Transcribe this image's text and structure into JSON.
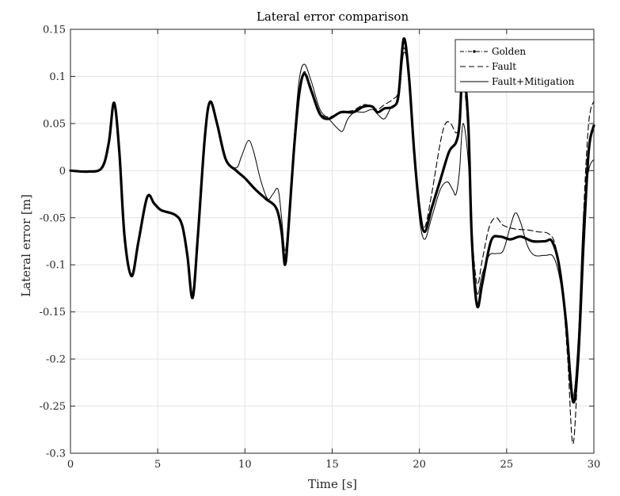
{
  "chart_data": {
    "type": "line",
    "title": "Lateral error comparison",
    "xlabel": "Time [s]",
    "ylabel": "Lateral error [m]",
    "xlim": [
      0,
      30
    ],
    "ylim": [
      -0.3,
      0.15
    ],
    "xticks": [
      0,
      5,
      10,
      15,
      20,
      25,
      30
    ],
    "xtick_labels": [
      "0",
      "5",
      "10",
      "15",
      "20",
      "25",
      "30"
    ],
    "yticks": [
      0.15,
      0.1,
      0.05,
      0,
      -0.05,
      -0.1,
      -0.15,
      -0.2,
      -0.25,
      -0.3
    ],
    "ytick_labels": [
      "0.15",
      "0.1",
      "0.05",
      "0",
      "-0.05",
      "-0.1",
      "-0.15",
      "-0.2",
      "-0.25",
      "-0.3"
    ],
    "grid": true,
    "legend_position": "top-right",
    "series": [
      {
        "name": "Golden",
        "style": "dash-dot",
        "color": "#000000",
        "points": [
          [
            0,
            0
          ],
          [
            1.0,
            -0.001
          ],
          [
            1.8,
            0.003
          ],
          [
            2.2,
            0.03
          ],
          [
            2.5,
            0.072
          ],
          [
            2.8,
            0.02
          ],
          [
            3.1,
            -0.07
          ],
          [
            3.5,
            -0.112
          ],
          [
            3.9,
            -0.075
          ],
          [
            4.4,
            -0.028
          ],
          [
            4.8,
            -0.035
          ],
          [
            5.2,
            -0.042
          ],
          [
            6.0,
            -0.047
          ],
          [
            6.4,
            -0.058
          ],
          [
            6.7,
            -0.09
          ],
          [
            7.0,
            -0.135
          ],
          [
            7.3,
            -0.07
          ],
          [
            7.7,
            0.035
          ],
          [
            8.0,
            0.073
          ],
          [
            8.4,
            0.05
          ],
          [
            8.9,
            0.012
          ],
          [
            9.5,
            0.0
          ],
          [
            10.0,
            -0.008
          ],
          [
            10.6,
            -0.02
          ],
          [
            11.2,
            -0.03
          ],
          [
            11.8,
            -0.04
          ],
          [
            12.1,
            -0.065
          ],
          [
            12.3,
            -0.1
          ],
          [
            12.5,
            -0.06
          ],
          [
            12.8,
            0.02
          ],
          [
            13.1,
            0.08
          ],
          [
            13.4,
            0.103
          ],
          [
            13.8,
            0.085
          ],
          [
            14.3,
            0.06
          ],
          [
            14.8,
            0.055
          ],
          [
            15.5,
            0.062
          ],
          [
            16.2,
            0.062
          ],
          [
            16.8,
            0.068
          ],
          [
            17.3,
            0.068
          ],
          [
            17.6,
            0.062
          ],
          [
            18.0,
            0.066
          ],
          [
            18.5,
            0.068
          ],
          [
            18.8,
            0.08
          ],
          [
            19.1,
            0.14
          ],
          [
            19.4,
            0.1
          ],
          [
            19.7,
            0.02
          ],
          [
            20.0,
            -0.04
          ],
          [
            20.3,
            -0.065
          ],
          [
            20.7,
            -0.04
          ],
          [
            21.2,
            -0.01
          ],
          [
            21.7,
            0.02
          ],
          [
            22.1,
            0.03
          ],
          [
            22.3,
            0.05
          ],
          [
            22.5,
            0.11
          ],
          [
            22.8,
            0.05
          ],
          [
            23.0,
            -0.07
          ],
          [
            23.3,
            -0.143
          ],
          [
            23.6,
            -0.12
          ],
          [
            24.1,
            -0.075
          ],
          [
            24.6,
            -0.07
          ],
          [
            25.2,
            -0.073
          ],
          [
            25.8,
            -0.07
          ],
          [
            26.5,
            -0.075
          ],
          [
            27.2,
            -0.075
          ],
          [
            27.6,
            -0.075
          ],
          [
            28.0,
            -0.1
          ],
          [
            28.4,
            -0.16
          ],
          [
            28.8,
            -0.245
          ],
          [
            29.1,
            -0.2
          ],
          [
            29.4,
            -0.08
          ],
          [
            29.7,
            0.02
          ],
          [
            30.0,
            0.048
          ]
        ]
      },
      {
        "name": "Fault",
        "style": "dashed",
        "color": "#000000",
        "points": [
          [
            0,
            0
          ],
          [
            1.0,
            -0.001
          ],
          [
            1.8,
            0.003
          ],
          [
            2.2,
            0.03
          ],
          [
            2.5,
            0.072
          ],
          [
            2.8,
            0.02
          ],
          [
            3.1,
            -0.07
          ],
          [
            3.5,
            -0.112
          ],
          [
            3.9,
            -0.075
          ],
          [
            4.4,
            -0.028
          ],
          [
            4.8,
            -0.035
          ],
          [
            5.2,
            -0.042
          ],
          [
            6.0,
            -0.047
          ],
          [
            6.4,
            -0.058
          ],
          [
            6.7,
            -0.09
          ],
          [
            7.0,
            -0.135
          ],
          [
            7.3,
            -0.07
          ],
          [
            7.7,
            0.035
          ],
          [
            8.0,
            0.073
          ],
          [
            8.4,
            0.05
          ],
          [
            8.9,
            0.012
          ],
          [
            9.5,
            0.0
          ],
          [
            10.0,
            -0.008
          ],
          [
            10.6,
            -0.02
          ],
          [
            11.2,
            -0.03
          ],
          [
            11.8,
            -0.04
          ],
          [
            12.1,
            -0.065
          ],
          [
            12.3,
            -0.09
          ],
          [
            12.5,
            -0.06
          ],
          [
            12.8,
            0.02
          ],
          [
            13.1,
            0.08
          ],
          [
            13.4,
            0.105
          ],
          [
            13.8,
            0.088
          ],
          [
            14.3,
            0.062
          ],
          [
            14.8,
            0.057
          ],
          [
            15.5,
            0.062
          ],
          [
            16.2,
            0.064
          ],
          [
            16.8,
            0.07
          ],
          [
            17.3,
            0.068
          ],
          [
            17.6,
            0.065
          ],
          [
            18.0,
            0.07
          ],
          [
            18.5,
            0.076
          ],
          [
            18.8,
            0.085
          ],
          [
            19.1,
            0.13
          ],
          [
            19.4,
            0.1
          ],
          [
            19.7,
            0.02
          ],
          [
            20.0,
            -0.04
          ],
          [
            20.3,
            -0.06
          ],
          [
            20.7,
            -0.025
          ],
          [
            21.2,
            0.03
          ],
          [
            21.5,
            0.05
          ],
          [
            21.8,
            0.05
          ],
          [
            22.1,
            0.04
          ],
          [
            22.3,
            0.05
          ],
          [
            22.5,
            0.095
          ],
          [
            22.8,
            0.04
          ],
          [
            23.0,
            -0.06
          ],
          [
            23.3,
            -0.12
          ],
          [
            23.6,
            -0.095
          ],
          [
            24.0,
            -0.06
          ],
          [
            24.4,
            -0.05
          ],
          [
            24.8,
            -0.058
          ],
          [
            25.5,
            -0.062
          ],
          [
            26.2,
            -0.063
          ],
          [
            26.8,
            -0.065
          ],
          [
            27.4,
            -0.067
          ],
          [
            27.8,
            -0.08
          ],
          [
            28.2,
            -0.13
          ],
          [
            28.5,
            -0.2
          ],
          [
            28.8,
            -0.29
          ],
          [
            29.1,
            -0.2
          ],
          [
            29.4,
            -0.05
          ],
          [
            29.7,
            0.05
          ],
          [
            30.0,
            0.074
          ]
        ]
      },
      {
        "name": "Fault+Mitigation",
        "style": "solid-thin",
        "color": "#000000",
        "points": [
          [
            0,
            0
          ],
          [
            1.0,
            -0.001
          ],
          [
            1.8,
            0.003
          ],
          [
            2.2,
            0.03
          ],
          [
            2.5,
            0.072
          ],
          [
            2.8,
            0.02
          ],
          [
            3.1,
            -0.07
          ],
          [
            3.5,
            -0.112
          ],
          [
            3.9,
            -0.075
          ],
          [
            4.4,
            -0.028
          ],
          [
            4.8,
            -0.035
          ],
          [
            5.2,
            -0.042
          ],
          [
            6.0,
            -0.047
          ],
          [
            6.4,
            -0.058
          ],
          [
            6.7,
            -0.09
          ],
          [
            7.0,
            -0.135
          ],
          [
            7.3,
            -0.07
          ],
          [
            7.7,
            0.035
          ],
          [
            8.0,
            0.073
          ],
          [
            8.4,
            0.05
          ],
          [
            8.9,
            0.012
          ],
          [
            9.5,
            0.003
          ],
          [
            9.8,
            0.015
          ],
          [
            10.2,
            0.032
          ],
          [
            10.5,
            0.02
          ],
          [
            10.9,
            -0.01
          ],
          [
            11.3,
            -0.03
          ],
          [
            11.6,
            -0.025
          ],
          [
            11.9,
            -0.02
          ],
          [
            12.1,
            -0.05
          ],
          [
            12.3,
            -0.085
          ],
          [
            12.5,
            -0.05
          ],
          [
            12.8,
            0.03
          ],
          [
            13.1,
            0.095
          ],
          [
            13.4,
            0.113
          ],
          [
            13.8,
            0.095
          ],
          [
            14.3,
            0.065
          ],
          [
            14.8,
            0.055
          ],
          [
            15.3,
            0.045
          ],
          [
            15.6,
            0.042
          ],
          [
            15.9,
            0.055
          ],
          [
            16.3,
            0.062
          ],
          [
            16.8,
            0.062
          ],
          [
            17.3,
            0.065
          ],
          [
            17.6,
            0.06
          ],
          [
            18.0,
            0.055
          ],
          [
            18.4,
            0.068
          ],
          [
            18.8,
            0.075
          ],
          [
            19.1,
            0.125
          ],
          [
            19.4,
            0.1
          ],
          [
            19.7,
            0.02
          ],
          [
            20.0,
            -0.05
          ],
          [
            20.3,
            -0.073
          ],
          [
            20.7,
            -0.05
          ],
          [
            21.2,
            -0.02
          ],
          [
            21.6,
            -0.012
          ],
          [
            21.9,
            -0.02
          ],
          [
            22.1,
            -0.025
          ],
          [
            22.3,
            0.0
          ],
          [
            22.5,
            0.05
          ],
          [
            22.8,
            0.01
          ],
          [
            23.0,
            -0.07
          ],
          [
            23.3,
            -0.13
          ],
          [
            23.6,
            -0.11
          ],
          [
            24.0,
            -0.09
          ],
          [
            24.4,
            -0.088
          ],
          [
            24.8,
            -0.085
          ],
          [
            25.2,
            -0.06
          ],
          [
            25.5,
            -0.045
          ],
          [
            25.8,
            -0.055
          ],
          [
            26.2,
            -0.08
          ],
          [
            26.6,
            -0.09
          ],
          [
            27.2,
            -0.09
          ],
          [
            27.7,
            -0.092
          ],
          [
            28.1,
            -0.12
          ],
          [
            28.5,
            -0.18
          ],
          [
            28.8,
            -0.24
          ],
          [
            29.1,
            -0.18
          ],
          [
            29.4,
            -0.05
          ],
          [
            29.7,
            0.0
          ],
          [
            30.0,
            0.012
          ]
        ]
      }
    ]
  }
}
